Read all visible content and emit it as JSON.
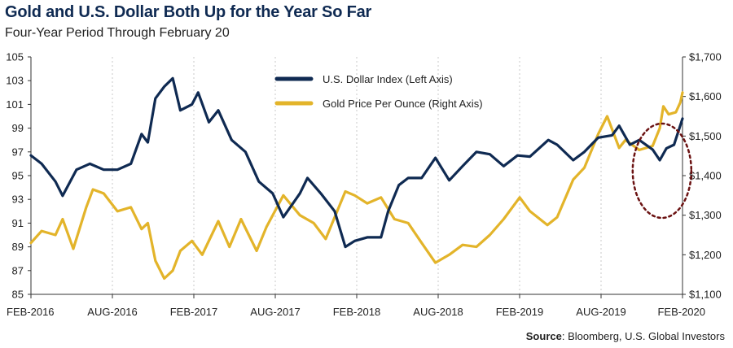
{
  "title": "Gold and U.S. Dollar Both Up for the Year So Far",
  "subtitle": "Four-Year Period Through February 20",
  "source_label": "Source",
  "source_text": ": Bloomberg, U.S. Global Investors",
  "colors": {
    "dollar": "#0f2a52",
    "gold": "#e3b42a",
    "annotation": "#6b1212",
    "grid": "#c8c8c8"
  },
  "chart_data": {
    "type": "line",
    "title": "Gold and U.S. Dollar Both Up for the Year So Far",
    "subtitle": "Four-Year Period Through February 20",
    "x_ticks": [
      "FEB-2016",
      "AUG-2016",
      "FEB-2017",
      "AUG-2017",
      "FEB-2018",
      "AUG-2018",
      "FEB-2019",
      "AUG-2019",
      "FEB-2020"
    ],
    "x_range": [
      "2016-02-20",
      "2020-02-20"
    ],
    "left_axis": {
      "range": [
        85,
        105
      ],
      "ticks": [
        "85",
        "87",
        "89",
        "91",
        "93",
        "95",
        "97",
        "99",
        "101",
        "103",
        "105"
      ]
    },
    "right_axis": {
      "range": [
        1100,
        1700
      ],
      "ticks": [
        "$1,100",
        "$1,200",
        "$1,300",
        "$1,400",
        "$1,500",
        "$1,600",
        "$1,700"
      ]
    },
    "grid": "vertical dotted lines at x ticks",
    "legend_position": "top-center",
    "series": [
      {
        "name": "U.S. Dollar Index (Left Axis)",
        "axis": "left",
        "points": [
          [
            "2016-02-20",
            96.7
          ],
          [
            "2016-03-15",
            96.0
          ],
          [
            "2016-04-15",
            94.5
          ],
          [
            "2016-05-01",
            93.3
          ],
          [
            "2016-06-01",
            95.5
          ],
          [
            "2016-07-01",
            96.0
          ],
          [
            "2016-08-01",
            95.5
          ],
          [
            "2016-09-01",
            95.5
          ],
          [
            "2016-10-01",
            96.0
          ],
          [
            "2016-10-25",
            98.5
          ],
          [
            "2016-11-08",
            97.8
          ],
          [
            "2016-11-25",
            101.5
          ],
          [
            "2016-12-15",
            102.5
          ],
          [
            "2017-01-03",
            103.2
          ],
          [
            "2017-01-20",
            100.5
          ],
          [
            "2017-02-15",
            101.0
          ],
          [
            "2017-03-01",
            102.0
          ],
          [
            "2017-03-25",
            99.5
          ],
          [
            "2017-04-15",
            100.5
          ],
          [
            "2017-05-15",
            98.0
          ],
          [
            "2017-06-15",
            97.0
          ],
          [
            "2017-07-15",
            94.5
          ],
          [
            "2017-08-15",
            93.5
          ],
          [
            "2017-09-08",
            91.5
          ],
          [
            "2017-10-15",
            93.5
          ],
          [
            "2017-11-01",
            94.8
          ],
          [
            "2017-12-01",
            93.5
          ],
          [
            "2018-01-01",
            92.0
          ],
          [
            "2018-01-25",
            89.0
          ],
          [
            "2018-02-15",
            89.5
          ],
          [
            "2018-03-15",
            89.8
          ],
          [
            "2018-04-15",
            89.8
          ],
          [
            "2018-05-01",
            92.0
          ],
          [
            "2018-05-25",
            94.2
          ],
          [
            "2018-06-15",
            94.8
          ],
          [
            "2018-07-15",
            94.8
          ],
          [
            "2018-08-15",
            96.5
          ],
          [
            "2018-09-15",
            94.6
          ],
          [
            "2018-10-15",
            95.8
          ],
          [
            "2018-11-15",
            97.0
          ],
          [
            "2018-12-15",
            96.8
          ],
          [
            "2019-01-15",
            95.8
          ],
          [
            "2019-02-15",
            96.7
          ],
          [
            "2019-03-15",
            96.6
          ],
          [
            "2019-04-25",
            98.0
          ],
          [
            "2019-05-15",
            97.6
          ],
          [
            "2019-06-20",
            96.3
          ],
          [
            "2019-07-15",
            97.0
          ],
          [
            "2019-08-15",
            98.2
          ],
          [
            "2019-09-15",
            98.4
          ],
          [
            "2019-10-01",
            99.2
          ],
          [
            "2019-10-25",
            97.6
          ],
          [
            "2019-11-15",
            98.0
          ],
          [
            "2019-12-15",
            97.2
          ],
          [
            "2019-12-31",
            96.3
          ],
          [
            "2020-01-15",
            97.3
          ],
          [
            "2020-02-01",
            97.6
          ],
          [
            "2020-02-20",
            99.8
          ]
        ]
      },
      {
        "name": "Gold Price Per Ounce (Right Axis)",
        "axis": "right",
        "points": [
          [
            "2016-02-20",
            1230
          ],
          [
            "2016-03-15",
            1260
          ],
          [
            "2016-04-15",
            1250
          ],
          [
            "2016-05-01",
            1290
          ],
          [
            "2016-05-25",
            1215
          ],
          [
            "2016-06-23",
            1320
          ],
          [
            "2016-07-08",
            1365
          ],
          [
            "2016-08-01",
            1355
          ],
          [
            "2016-09-01",
            1310
          ],
          [
            "2016-10-01",
            1320
          ],
          [
            "2016-10-25",
            1265
          ],
          [
            "2016-11-08",
            1280
          ],
          [
            "2016-11-25",
            1185
          ],
          [
            "2016-12-15",
            1140
          ],
          [
            "2017-01-03",
            1160
          ],
          [
            "2017-01-20",
            1210
          ],
          [
            "2017-02-15",
            1235
          ],
          [
            "2017-03-10",
            1200
          ],
          [
            "2017-04-15",
            1285
          ],
          [
            "2017-05-10",
            1220
          ],
          [
            "2017-06-05",
            1290
          ],
          [
            "2017-07-10",
            1210
          ],
          [
            "2017-08-01",
            1270
          ],
          [
            "2017-09-08",
            1350
          ],
          [
            "2017-10-15",
            1300
          ],
          [
            "2017-11-15",
            1280
          ],
          [
            "2017-12-12",
            1240
          ],
          [
            "2018-01-25",
            1360
          ],
          [
            "2018-02-15",
            1350
          ],
          [
            "2018-03-15",
            1330
          ],
          [
            "2018-04-15",
            1345
          ],
          [
            "2018-05-15",
            1290
          ],
          [
            "2018-06-15",
            1280
          ],
          [
            "2018-07-15",
            1230
          ],
          [
            "2018-08-15",
            1180
          ],
          [
            "2018-09-15",
            1200
          ],
          [
            "2018-10-15",
            1225
          ],
          [
            "2018-11-15",
            1220
          ],
          [
            "2018-12-15",
            1250
          ],
          [
            "2019-01-15",
            1290
          ],
          [
            "2019-02-20",
            1345
          ],
          [
            "2019-03-15",
            1310
          ],
          [
            "2019-04-23",
            1275
          ],
          [
            "2019-05-15",
            1295
          ],
          [
            "2019-06-20",
            1390
          ],
          [
            "2019-07-15",
            1420
          ],
          [
            "2019-08-15",
            1505
          ],
          [
            "2019-09-04",
            1550
          ],
          [
            "2019-10-01",
            1470
          ],
          [
            "2019-10-15",
            1490
          ],
          [
            "2019-11-15",
            1465
          ],
          [
            "2019-12-15",
            1475
          ],
          [
            "2019-12-31",
            1520
          ],
          [
            "2020-01-08",
            1575
          ],
          [
            "2020-01-20",
            1555
          ],
          [
            "2020-02-05",
            1560
          ],
          [
            "2020-02-15",
            1585
          ],
          [
            "2020-02-20",
            1610
          ]
        ]
      }
    ]
  }
}
